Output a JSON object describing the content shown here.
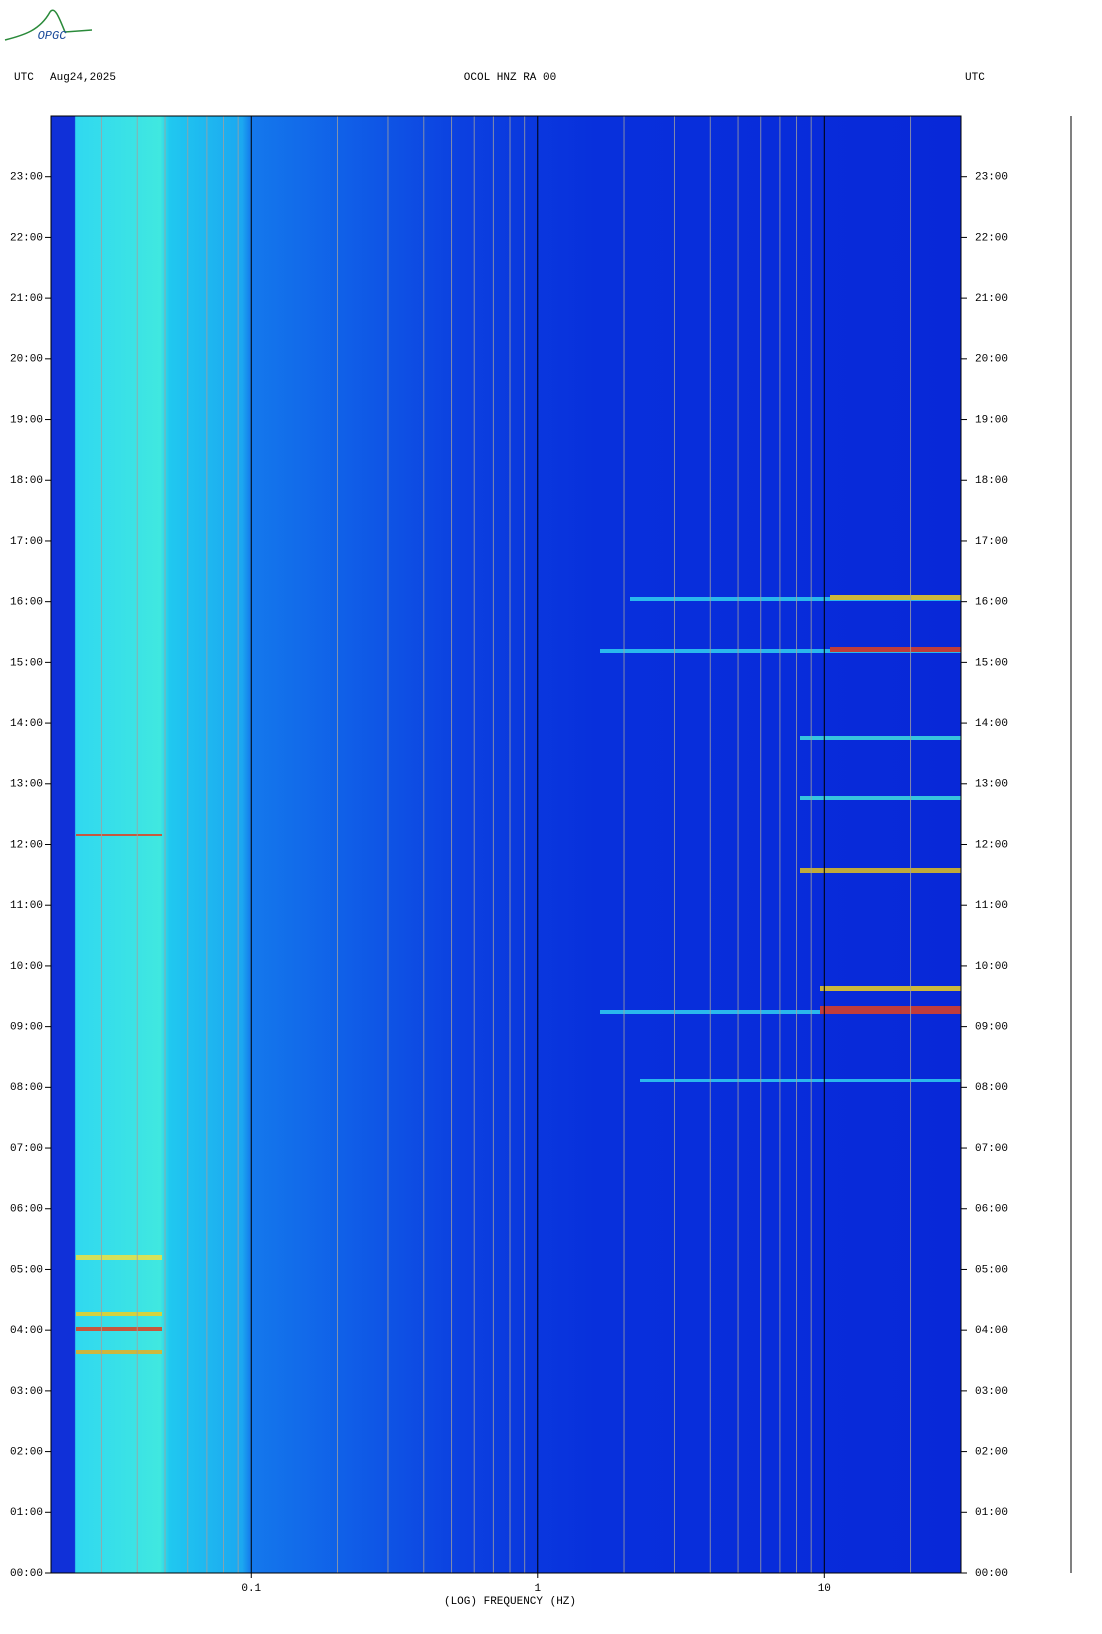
{
  "logo": "OPGC",
  "chart_data": {
    "type": "spectrogram",
    "title": "OCOL HNZ RA 00",
    "time_zone_left": "UTC",
    "date": "Aug24,2025",
    "time_zone_right": "UTC",
    "xlabel": "(LOG) FREQUENCY (HZ)",
    "log_x": true,
    "xlim": [
      0.02,
      30
    ],
    "xticks": [
      0.1,
      1,
      10
    ],
    "xminorticks": [
      0.02,
      0.03,
      0.04,
      0.05,
      0.06,
      0.07,
      0.08,
      0.09,
      0.2,
      0.3,
      0.4,
      0.5,
      0.6,
      0.7,
      0.8,
      0.9,
      2,
      3,
      4,
      5,
      6,
      7,
      8,
      9,
      20
    ],
    "ylim": [
      0,
      24
    ],
    "yticks": [
      {
        "value": 0,
        "label": "00:00"
      },
      {
        "value": 1,
        "label": "01:00"
      },
      {
        "value": 2,
        "label": "02:00"
      },
      {
        "value": 3,
        "label": "03:00"
      },
      {
        "value": 4,
        "label": "04:00"
      },
      {
        "value": 5,
        "label": "05:00"
      },
      {
        "value": 6,
        "label": "06:00"
      },
      {
        "value": 7,
        "label": "07:00"
      },
      {
        "value": 8,
        "label": "08:00"
      },
      {
        "value": 9,
        "label": "09:00"
      },
      {
        "value": 10,
        "label": "10:00"
      },
      {
        "value": 11,
        "label": "11:00"
      },
      {
        "value": 12,
        "label": "12:00"
      },
      {
        "value": 13,
        "label": "13:00"
      },
      {
        "value": 14,
        "label": "14:00"
      },
      {
        "value": 15,
        "label": "15:00"
      },
      {
        "value": 16,
        "label": "16:00"
      },
      {
        "value": 17,
        "label": "17:00"
      },
      {
        "value": 18,
        "label": "18:00"
      },
      {
        "value": 19,
        "label": "19:00"
      },
      {
        "value": 20,
        "label": "20:00"
      },
      {
        "value": 21,
        "label": "21:00"
      },
      {
        "value": 22,
        "label": "22:00"
      },
      {
        "value": 23,
        "label": "23:00"
      }
    ]
  }
}
